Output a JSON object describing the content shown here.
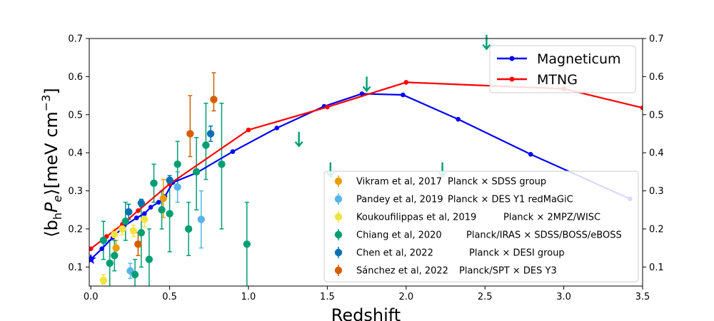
{
  "chart_data": {
    "type": "scatter",
    "xlabel": "Redshift",
    "ylabel_parts": [
      "⟨b",
      "h",
      "P",
      "e",
      "⟩[meV cm",
      "−3",
      "]"
    ],
    "xlim": [
      -0.01,
      3.5
    ],
    "ylim": [
      0.05,
      0.7
    ],
    "x_ticks": [
      0.0,
      0.5,
      1.0,
      1.5,
      2.0,
      2.5,
      3.0,
      3.5
    ],
    "x_tick_labels": [
      "0.0",
      "0.5",
      "1.0",
      "1.5",
      "2.0",
      "2.5",
      "3.0",
      "3.5"
    ],
    "y_ticks": [
      0.1,
      0.2,
      0.3,
      0.4,
      0.5,
      0.6,
      0.7
    ],
    "y_tick_labels": [
      "0.1",
      "0.2",
      "0.3",
      "0.4",
      "0.5",
      "0.6",
      "0.7"
    ],
    "right_axis_ticks_mirrored": true,
    "grid": false,
    "lines": [
      {
        "name": "Magneticum",
        "color": "#0000ff",
        "start_marker": "star",
        "x": [
          0.0,
          0.07,
          0.14,
          0.21,
          0.29,
          0.34,
          0.38,
          0.43,
          0.47,
          0.52,
          0.67,
          0.9,
          1.18,
          1.48,
          1.72,
          1.98,
          2.33,
          2.79,
          3.42
        ],
        "y": [
          0.12,
          0.148,
          0.178,
          0.207,
          0.229,
          0.24,
          0.257,
          0.27,
          0.285,
          0.322,
          0.347,
          0.403,
          0.465,
          0.522,
          0.555,
          0.552,
          0.488,
          0.396,
          0.279
        ]
      },
      {
        "name": "MTNG",
        "color": "#ff0000",
        "x": [
          0.0,
          0.1,
          0.2,
          0.3,
          0.5,
          1.0,
          1.5,
          2.0,
          3.0,
          3.5
        ],
        "y": [
          0.148,
          0.18,
          0.212,
          0.248,
          0.318,
          0.46,
          0.52,
          0.585,
          0.568,
          0.518
        ]
      }
    ],
    "line_legend": {
      "placement": "upper-right",
      "entries": [
        "Magneticum",
        "MTNG"
      ]
    },
    "points": [
      {
        "name": "Vikram et al, 2017",
        "note": "Planck × SDSS group",
        "color": "#e69f00",
        "x": [
          0.16,
          0.3,
          0.46
        ],
        "y": [
          0.15,
          0.16,
          0.28
        ],
        "lo": [
          0.13,
          0.13,
          0.23
        ],
        "hi": [
          0.17,
          0.19,
          0.33
        ]
      },
      {
        "name": "Pandey et al, 2019",
        "note": "Planck × DES Y1 redMaGiC",
        "color": "#56b4e9",
        "x": [
          0.25,
          0.55,
          0.7
        ],
        "y": [
          0.09,
          0.31,
          0.225
        ],
        "lo": [
          0.07,
          0.27,
          0.15
        ],
        "hi": [
          0.11,
          0.35,
          0.3
        ]
      },
      {
        "name": "Koukoufilippas et al, 2019",
        "note": "Planck × 2MPZ/WISC",
        "color": "#f0e442",
        "x": [
          0.08,
          0.15,
          0.2,
          0.27,
          0.34
        ],
        "y": [
          0.065,
          0.185,
          0.2,
          0.195,
          0.225
        ],
        "lo": [
          0.055,
          0.17,
          0.185,
          0.18,
          0.205
        ],
        "hi": [
          0.08,
          0.2,
          0.215,
          0.21,
          0.245
        ]
      },
      {
        "name": "Chiang et al, 2020",
        "note": "Planck/IRAS × SDSS/BOSS/eBOSS",
        "color": "#009e73",
        "x": [
          0.08,
          0.12,
          0.15,
          0.22,
          0.28,
          0.32,
          0.37,
          0.4,
          0.45,
          0.5,
          0.55,
          0.62,
          0.67,
          0.73,
          0.83,
          0.99
        ],
        "y": [
          0.17,
          0.11,
          0.13,
          0.22,
          0.08,
          0.19,
          0.12,
          0.32,
          0.25,
          0.24,
          0.37,
          0.2,
          0.35,
          0.42,
          0.37,
          0.16
        ],
        "lo": [
          0.12,
          0.05,
          0.09,
          0.17,
          0.05,
          0.1,
          0.05,
          0.27,
          0.2,
          0.14,
          0.31,
          0.13,
          0.25,
          0.33,
          0.2,
          0.05
        ],
        "hi": [
          0.22,
          0.17,
          0.17,
          0.27,
          0.12,
          0.26,
          0.2,
          0.37,
          0.3,
          0.33,
          0.43,
          0.27,
          0.44,
          0.53,
          0.53,
          0.27
        ]
      },
      {
        "name": "Chen et al, 2022",
        "note": "Planck × DESI group",
        "color": "#0072b2",
        "x": [
          0.24,
          0.32,
          0.5,
          0.76
        ],
        "y": [
          0.245,
          0.268,
          0.328,
          0.45
        ],
        "lo": [
          0.225,
          0.258,
          0.315,
          0.43
        ],
        "hi": [
          0.265,
          0.278,
          0.34,
          0.47
        ]
      },
      {
        "name": "Sánchez et al, 2022",
        "note": "Planck/SPT × DES Y3",
        "color": "#d55e00",
        "x": [
          0.3,
          0.63,
          0.78
        ],
        "y": [
          0.16,
          0.45,
          0.54
        ],
        "lo": [
          0.13,
          0.39,
          0.51
        ],
        "hi": [
          0.19,
          0.55,
          0.61
        ]
      }
    ],
    "upper_limits": {
      "color": "#009e73",
      "x": [
        1.32,
        1.52,
        1.75,
        2.23,
        2.51
      ],
      "y": [
        0.455,
        0.375,
        0.6,
        0.375,
        0.71
      ]
    },
    "points_legend": {
      "placement": "lower-right"
    }
  }
}
